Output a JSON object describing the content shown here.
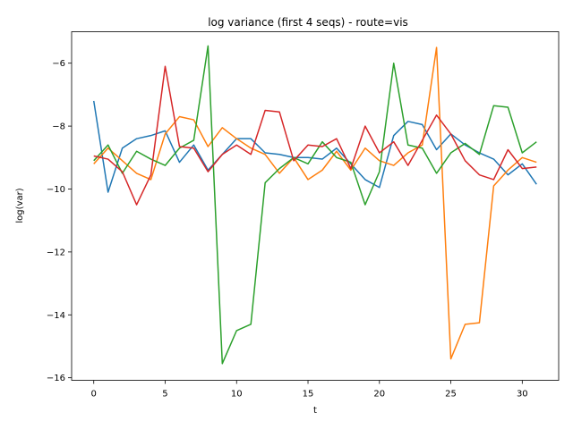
{
  "chart_data": {
    "type": "line",
    "title": "log variance (first 4 seqs) - route=vis",
    "xlabel": "t",
    "ylabel": "log(var)",
    "xlim": [
      -1.55,
      32.55
    ],
    "ylim": [
      -16.08,
      -5.0
    ],
    "xticks": [
      0,
      5,
      10,
      15,
      20,
      25,
      30
    ],
    "yticks": [
      -16,
      -14,
      -12,
      -10,
      -8,
      -6
    ],
    "x": [
      0,
      1,
      2,
      3,
      4,
      5,
      6,
      7,
      8,
      9,
      10,
      11,
      12,
      13,
      14,
      15,
      16,
      17,
      18,
      19,
      20,
      21,
      22,
      23,
      24,
      25,
      26,
      27,
      28,
      29,
      30,
      31
    ],
    "series": [
      {
        "color": "#1f77b4",
        "values": [
          -7.2,
          -10.1,
          -8.7,
          -8.4,
          -8.3,
          -8.15,
          -9.15,
          -8.6,
          -9.4,
          -8.9,
          -8.4,
          -8.4,
          -8.85,
          -8.9,
          -9.0,
          -9.0,
          -9.05,
          -8.7,
          -9.2,
          -9.7,
          -9.95,
          -8.3,
          -7.85,
          -7.95,
          -8.75,
          -8.25,
          -8.6,
          -8.85,
          -9.05,
          -9.55,
          -9.2,
          -9.85
        ]
      },
      {
        "color": "#ff7f0e",
        "values": [
          -9.2,
          -8.7,
          -9.1,
          -9.5,
          -9.7,
          -8.25,
          -7.7,
          -7.8,
          -8.65,
          -8.05,
          -8.4,
          -8.7,
          -8.9,
          -9.5,
          -9.0,
          -9.7,
          -9.4,
          -8.8,
          -9.4,
          -8.7,
          -9.1,
          -9.25,
          -8.85,
          -8.6,
          -5.5,
          -15.4,
          -14.3,
          -14.25,
          -9.9,
          -9.4,
          -9.0,
          -9.15
        ]
      },
      {
        "color": "#2ca02c",
        "values": [
          -9.1,
          -8.6,
          -9.5,
          -8.8,
          -9.05,
          -9.25,
          -8.7,
          -8.45,
          -5.45,
          -15.55,
          -14.5,
          -14.3,
          -9.8,
          -9.35,
          -9.0,
          -9.2,
          -8.5,
          -9.0,
          -9.15,
          -10.5,
          -9.45,
          -6.0,
          -8.6,
          -8.7,
          -9.5,
          -8.85,
          -8.55,
          -8.9,
          -7.35,
          -7.4,
          -8.85,
          -8.5
        ]
      },
      {
        "color": "#d62728",
        "values": [
          -8.95,
          -9.05,
          -9.45,
          -10.5,
          -9.55,
          -6.1,
          -8.65,
          -8.7,
          -9.45,
          -8.9,
          -8.6,
          -8.9,
          -7.5,
          -7.55,
          -9.1,
          -8.6,
          -8.65,
          -8.4,
          -9.35,
          -8.0,
          -8.85,
          -8.5,
          -9.25,
          -8.45,
          -7.65,
          -8.25,
          -9.1,
          -9.55,
          -9.7,
          -8.75,
          -9.35,
          -9.3
        ]
      }
    ]
  }
}
